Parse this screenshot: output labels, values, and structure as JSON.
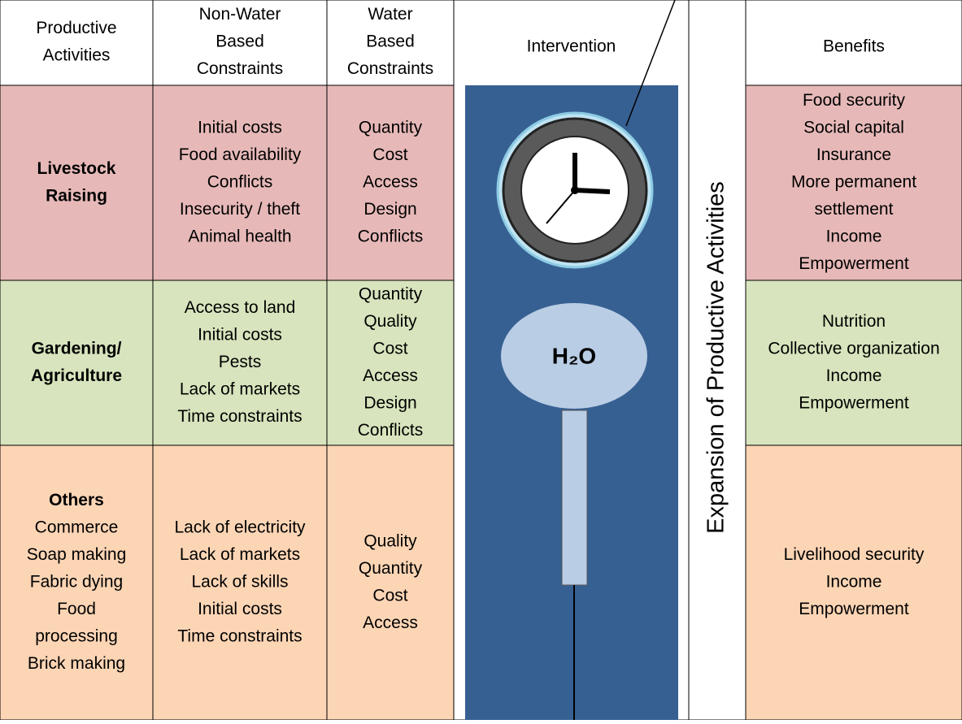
{
  "header": {
    "activities": [
      "Productive",
      "Activities"
    ],
    "non_water": [
      "Non-Water",
      "Based",
      "Constraints"
    ],
    "water": [
      "Water",
      "Based",
      "Constraints"
    ],
    "intervention": "Intervention",
    "benefits": "Benefits"
  },
  "rows": [
    {
      "activity": {
        "title": [
          "Livestock",
          "Raising"
        ],
        "items": []
      },
      "non_water": [
        "Initial costs",
        "Food availability",
        "Conflicts",
        "Insecurity / theft",
        "Animal health"
      ],
      "water": [
        "Quantity",
        "Cost",
        "Access",
        "Design",
        "Conflicts"
      ],
      "benefits": [
        "Food security",
        "Social capital",
        "Insurance",
        "More permanent",
        "settlement",
        "Income",
        "Empowerment"
      ]
    },
    {
      "activity": {
        "title": [
          "Gardening/",
          "Agriculture"
        ],
        "items": []
      },
      "non_water": [
        "Access to land",
        "Initial costs",
        "Pests",
        "Lack of markets",
        "Time constraints"
      ],
      "water": [
        "Quantity",
        "Quality",
        "Cost",
        "Access",
        "Design",
        "Conflicts"
      ],
      "benefits": [
        "Nutrition",
        "Collective organization",
        "Income",
        "Empowerment"
      ]
    },
    {
      "activity": {
        "title": [
          "Others"
        ],
        "items": [
          "Commerce",
          "Soap making",
          "Fabric dying",
          "Food",
          "processing",
          "Brick making"
        ]
      },
      "non_water": [
        "Lack of electricity",
        "Lack of markets",
        "Lack of skills",
        "Initial costs",
        "Time constraints"
      ],
      "water": [
        "Quality",
        "Quantity",
        "Cost",
        "Access"
      ],
      "benefits": [
        "Livelihood security",
        "Income",
        "Empowerment"
      ]
    }
  ],
  "vertical_label": "Expansion of Productive Activities",
  "h2o": "H₂O"
}
